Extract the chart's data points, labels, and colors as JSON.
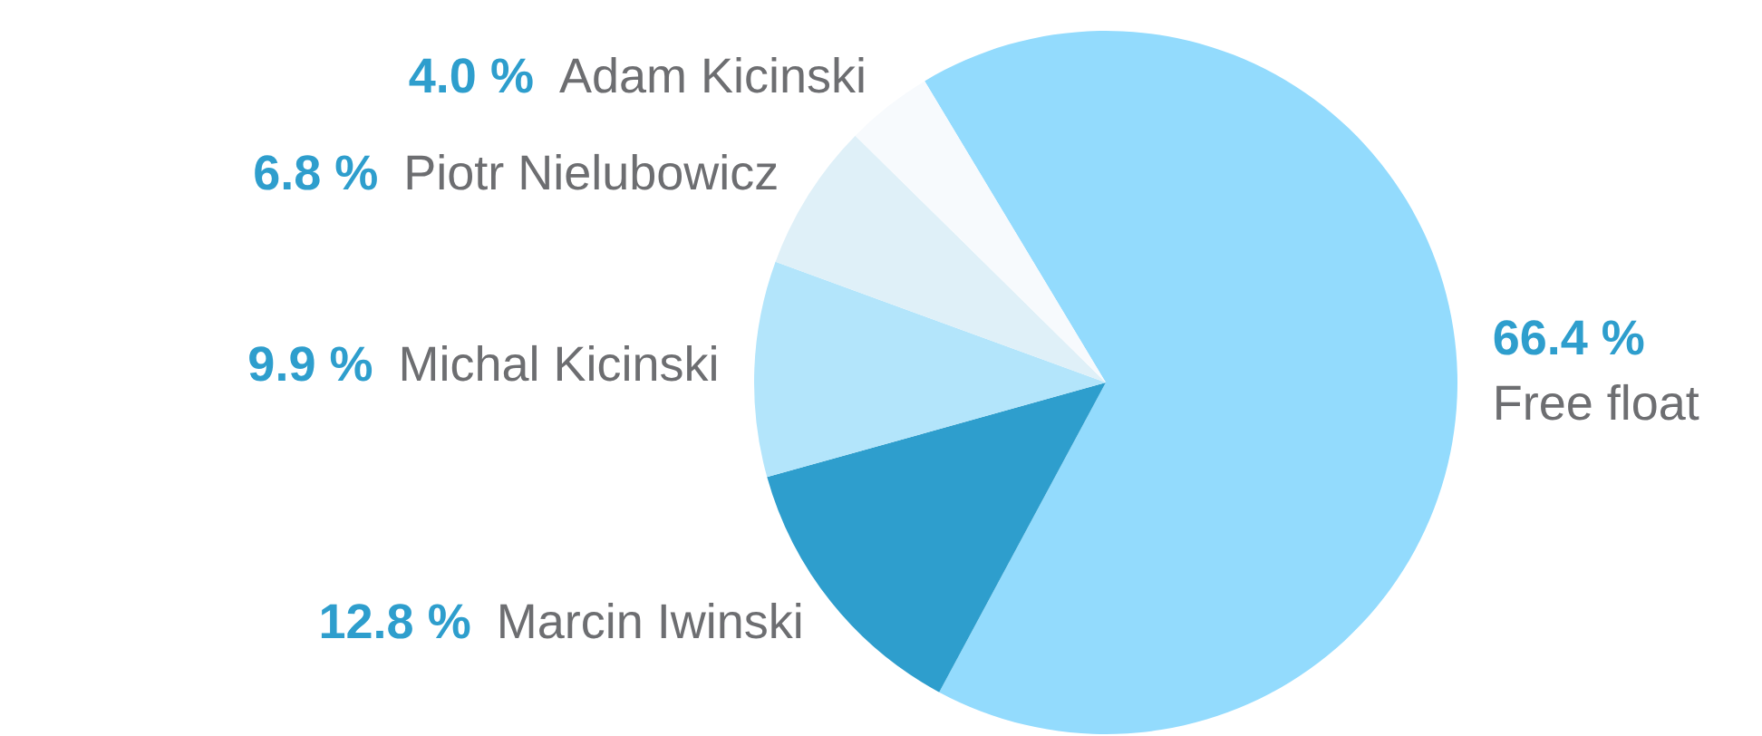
{
  "chart_data": {
    "type": "pie",
    "categories": [
      "Free float",
      "Marcin Iwinski",
      "Michal Kicinski",
      "Piotr Nielubowicz",
      "Adam Kicinski"
    ],
    "values": [
      66.4,
      12.8,
      9.9,
      6.8,
      4.0
    ],
    "colors": [
      "#93dbfd",
      "#2e9ecd",
      "#b3e5fb",
      "#dff0f8",
      "#f7fafd"
    ],
    "value_labels": [
      "66.4 %",
      "12.8 %",
      "9.9 %",
      "6.8 %",
      "4.0 %"
    ],
    "legend": false
  }
}
